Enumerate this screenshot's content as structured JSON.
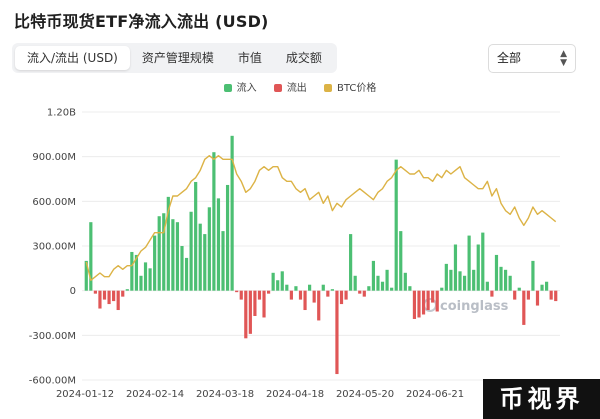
{
  "title": "比特币现货ETF净流入流出 (USD)",
  "tabs": [
    {
      "label": "流入/流出 (USD)",
      "active": true
    },
    {
      "label": "资产管理规模",
      "active": false
    },
    {
      "label": "市值",
      "active": false
    },
    {
      "label": "成交额",
      "active": false
    }
  ],
  "select": {
    "value": "全部"
  },
  "legend": [
    {
      "label": "流入",
      "color": "#4cbf73"
    },
    {
      "label": "流出",
      "color": "#e05656"
    },
    {
      "label": "BTC价格",
      "color": "#dcb346"
    }
  ],
  "watermark": "coinglass",
  "badge": "币视界",
  "chart_data": {
    "type": "bar",
    "y_ticks": [
      "1.20B",
      "900.00M",
      "600.00M",
      "300.00M",
      "0",
      "-300.00M",
      "-600.00M"
    ],
    "ylim": [
      -600,
      1200
    ],
    "y_unit": "M USD",
    "x_ticks": [
      "2024-01-12",
      "2024-02-14",
      "2024-03-18",
      "2024-04-18",
      "2024-05-20",
      "2024-06-21"
    ],
    "series": [
      {
        "name": "流入/流出",
        "values": [
          200,
          460,
          -20,
          -120,
          -60,
          -90,
          -70,
          -130,
          -40,
          10,
          260,
          240,
          100,
          190,
          150,
          370,
          500,
          520,
          630,
          480,
          460,
          300,
          220,
          530,
          730,
          450,
          380,
          560,
          930,
          620,
          400,
          710,
          1040,
          -10,
          -60,
          -320,
          -290,
          -170,
          -60,
          -180,
          -20,
          120,
          70,
          130,
          40,
          -60,
          30,
          -60,
          -130,
          40,
          -80,
          -200,
          40,
          -40,
          10,
          -560,
          -90,
          -60,
          380,
          100,
          -20,
          -40,
          30,
          200,
          100,
          60,
          140,
          20,
          880,
          400,
          120,
          30,
          -190,
          -180,
          -160,
          -130,
          -80,
          -140,
          20,
          180,
          140,
          310,
          130,
          100,
          370,
          140,
          310,
          390,
          60,
          -40,
          240,
          160,
          140,
          100,
          -60,
          20,
          -230,
          -60,
          200,
          -100,
          40,
          60,
          -60,
          -70
        ]
      },
      {
        "name": "BTC价格",
        "values": [
          44,
          39,
          40,
          41,
          40,
          40,
          42,
          43,
          42,
          43,
          43,
          45,
          47,
          48,
          50,
          52,
          52,
          52,
          58,
          62,
          62,
          63,
          64,
          66,
          67,
          69,
          72,
          73,
          72,
          73,
          72,
          72,
          72,
          68,
          66,
          63,
          64,
          66,
          69,
          70,
          69,
          70,
          70,
          67,
          66,
          66,
          64,
          63,
          64,
          61,
          62,
          63,
          60,
          62,
          58,
          60,
          59,
          61,
          62,
          63,
          64,
          63,
          62,
          61,
          63,
          64,
          66,
          67,
          69,
          70,
          69,
          68,
          68,
          69,
          67,
          67,
          66,
          68,
          67,
          69,
          68,
          69,
          70,
          67,
          66,
          65,
          64,
          64,
          66,
          62,
          64,
          60,
          58,
          57,
          59,
          56,
          54,
          56,
          59,
          57,
          58,
          57,
          56,
          55
        ]
      }
    ]
  }
}
